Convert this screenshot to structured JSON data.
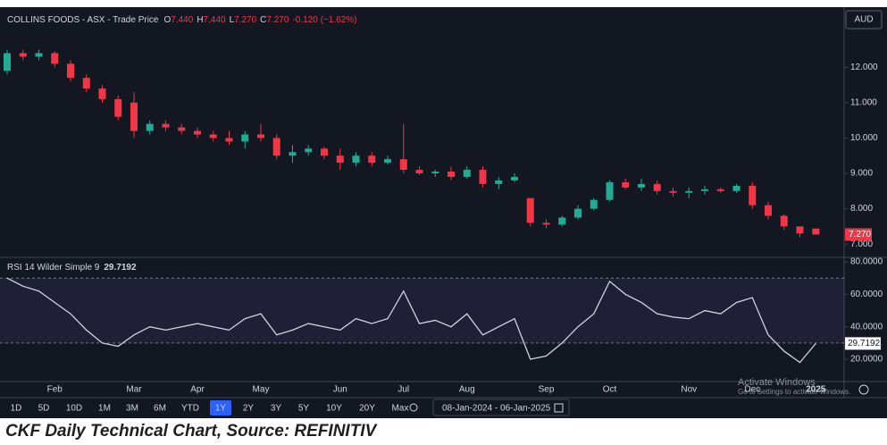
{
  "chart_data": [
    {
      "type": "candlestick",
      "title": "COLLINS FOODS - ASX - Trade Price",
      "ohlc_legend": [
        {
          "key": "O",
          "text": "7.440"
        },
        {
          "key": "H",
          "text": "7.440"
        },
        {
          "key": "L",
          "text": "7.270"
        },
        {
          "key": "C",
          "text": "7.270"
        }
      ],
      "change": "-0.120 (−1.62%)",
      "currency": "AUD",
      "categories": [
        null,
        null,
        null,
        "Feb",
        null,
        null,
        null,
        null,
        "Mar",
        null,
        null,
        null,
        "Apr",
        null,
        null,
        null,
        "May",
        null,
        null,
        null,
        null,
        "Jun",
        null,
        null,
        null,
        "Jul",
        null,
        null,
        null,
        "Aug",
        null,
        null,
        null,
        null,
        "Sep",
        null,
        null,
        null,
        "Oct",
        null,
        null,
        null,
        null,
        "Nov",
        null,
        null,
        null,
        "Dec",
        null,
        null,
        null,
        "2025"
      ],
      "open": [
        11.9,
        12.4,
        12.3,
        12.4,
        12.1,
        11.7,
        11.4,
        11.1,
        11.0,
        10.2,
        10.4,
        10.3,
        10.2,
        10.1,
        10.0,
        9.9,
        10.1,
        10.0,
        9.5,
        9.6,
        9.7,
        9.5,
        9.3,
        9.5,
        9.3,
        9.4,
        9.1,
        9.0,
        9.05,
        8.9,
        9.1,
        8.7,
        8.8,
        8.3,
        7.6,
        7.55,
        7.75,
        8.0,
        8.25,
        8.75,
        8.6,
        8.7,
        8.5,
        8.45,
        8.5,
        8.55,
        8.5,
        8.65,
        8.1,
        7.8,
        7.5,
        7.44
      ],
      "high": [
        12.5,
        12.5,
        12.5,
        12.45,
        12.2,
        11.8,
        11.5,
        11.2,
        11.3,
        10.5,
        10.5,
        10.4,
        10.3,
        10.2,
        10.2,
        10.2,
        10.4,
        10.1,
        9.8,
        9.8,
        9.75,
        9.7,
        9.6,
        9.6,
        9.5,
        10.4,
        9.2,
        9.1,
        9.2,
        9.2,
        9.2,
        8.9,
        9.0,
        8.3,
        7.7,
        7.8,
        8.1,
        8.3,
        8.8,
        8.85,
        8.85,
        8.8,
        8.6,
        8.6,
        8.65,
        8.6,
        8.7,
        8.75,
        8.2,
        7.85,
        7.5,
        7.44
      ],
      "low": [
        11.8,
        12.2,
        12.2,
        12.0,
        11.6,
        11.3,
        11.0,
        10.5,
        10.0,
        10.1,
        10.2,
        10.1,
        10.0,
        9.9,
        9.8,
        9.7,
        9.9,
        9.4,
        9.3,
        9.5,
        9.4,
        9.1,
        9.2,
        9.2,
        9.25,
        9.0,
        8.95,
        8.9,
        8.8,
        8.85,
        8.6,
        8.55,
        8.75,
        7.5,
        7.45,
        7.5,
        7.7,
        7.95,
        8.2,
        8.55,
        8.5,
        8.4,
        8.35,
        8.3,
        8.4,
        8.45,
        8.45,
        8.0,
        7.7,
        7.4,
        7.2,
        7.27
      ],
      "close": [
        12.4,
        12.3,
        12.4,
        12.1,
        11.7,
        11.4,
        11.1,
        10.6,
        10.2,
        10.4,
        10.3,
        10.2,
        10.1,
        10.0,
        9.9,
        10.1,
        10.0,
        9.5,
        9.6,
        9.7,
        9.5,
        9.3,
        9.5,
        9.3,
        9.4,
        9.1,
        9.0,
        9.05,
        8.9,
        9.1,
        8.7,
        8.8,
        8.9,
        7.6,
        7.55,
        7.75,
        8.0,
        8.25,
        8.75,
        8.6,
        8.7,
        8.5,
        8.45,
        8.5,
        8.55,
        8.5,
        8.65,
        8.1,
        7.8,
        7.5,
        7.3,
        7.27
      ],
      "up_color": "#22ab94",
      "down_color": "#f23645",
      "last_value": {
        "value": 7.27,
        "label": "7.270"
      },
      "ylim": [
        6.65,
        13.6
      ],
      "yticks": [
        {
          "value": 7,
          "label": "7.000"
        },
        {
          "value": 8,
          "label": "8.000"
        },
        {
          "value": 9,
          "label": "9.000"
        },
        {
          "value": 10,
          "label": "10.000"
        },
        {
          "value": 11,
          "label": "11.000"
        },
        {
          "value": 12,
          "label": "12.000"
        }
      ],
      "grid": false
    },
    {
      "type": "line",
      "series": [
        {
          "name": "RSI 14 Wilder Simple 9",
          "color": "#d1d4dc",
          "values": [
            70,
            65,
            62,
            55,
            48,
            38,
            30,
            28,
            35,
            40,
            38,
            40,
            42,
            40,
            38,
            45,
            48,
            35,
            38,
            42,
            40,
            38,
            45,
            42,
            45,
            62,
            42,
            44,
            40,
            48,
            35,
            40,
            45,
            20,
            22,
            30,
            40,
            48,
            68,
            60,
            55,
            48,
            46,
            45,
            50,
            48,
            55,
            58,
            35,
            25,
            18,
            29.7192
          ]
        }
      ],
      "band": [
        30,
        70
      ],
      "ylim": [
        6.8,
        81.7
      ],
      "yticks": [
        {
          "value": 20,
          "label": "20.0000"
        },
        {
          "value": 40,
          "label": "40.0000"
        },
        {
          "value": 60,
          "label": "60.0000"
        },
        {
          "value": 80,
          "label": "80.0000"
        }
      ],
      "grid": false
    }
  ],
  "toolbar": {
    "ranges": [
      "1D",
      "5D",
      "10D",
      "1M",
      "3M",
      "6M",
      "YTD",
      "1Y",
      "2Y",
      "3Y",
      "5Y",
      "10Y",
      "20Y",
      "Max"
    ],
    "active": "1Y",
    "date_range": "08-Jan-2024 - 06-Jan-2025"
  },
  "watermark": {
    "title": "Activate Windows",
    "text": "Go to Settings to activate Windows."
  },
  "caption": "CKF Daily Technical Chart, Source: REFINITIV"
}
